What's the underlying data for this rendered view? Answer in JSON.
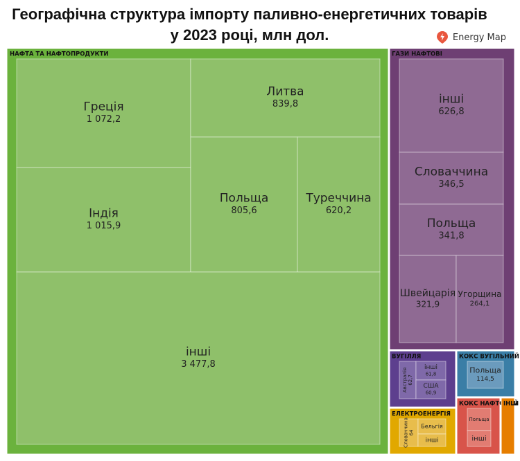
{
  "chart_data": {
    "type": "treemap",
    "title": "Географічна структура імпорту паливно-енергетичних товарів у 2023 році, млн дол.",
    "source": "Energy Map",
    "groups": [
      {
        "name": "НАФТА ТА НАФТОПРОДУКТИ",
        "color": "#6bb23d",
        "child_color": "#8fc06a",
        "children": [
          {
            "name": "Греція",
            "value": 1072.2,
            "value_label": "1 072,2"
          },
          {
            "name": "Індія",
            "value": 1015.9,
            "value_label": "1 015,9"
          },
          {
            "name": "Литва",
            "value": 839.8,
            "value_label": "839,8"
          },
          {
            "name": "Польща",
            "value": 805.6,
            "value_label": "805,6"
          },
          {
            "name": "Туреччина",
            "value": 620.2,
            "value_label": "620,2"
          },
          {
            "name": "інші",
            "value": 3477.8,
            "value_label": "3 477,8"
          }
        ]
      },
      {
        "name": "ГАЗИ НАФТОВІ",
        "color": "#6e3f73",
        "child_color": "#8f6a93",
        "children": [
          {
            "name": "інші",
            "value": 626.8,
            "value_label": "626,8"
          },
          {
            "name": "Словаччина",
            "value": 346.5,
            "value_label": "346,5"
          },
          {
            "name": "Польща",
            "value": 341.8,
            "value_label": "341,8"
          },
          {
            "name": "Швейцарія",
            "value": 321.9,
            "value_label": "321,9"
          },
          {
            "name": "Угорщина",
            "value": 264.1,
            "value_label": "264,1"
          }
        ]
      },
      {
        "name": "ВУГІЛЛЯ",
        "color": "#5d3f8e",
        "child_color": "#7f69a9",
        "children": [
          {
            "name": "Австралія",
            "value": 62.7,
            "value_label": "62,7"
          },
          {
            "name": "інші",
            "value": 61.8,
            "value_label": "61,8"
          },
          {
            "name": "США",
            "value": 60.9,
            "value_label": "60,9"
          }
        ]
      },
      {
        "name": "КОКС ВУГІЛЬНИЙ",
        "color": "#3a7ea6",
        "child_color": "#6b9bbd",
        "children": [
          {
            "name": "Польща",
            "value": 114.5,
            "value_label": "114,5"
          }
        ]
      },
      {
        "name": "ЕЛЕКТРОЕНЕРГІЯ",
        "color": "#e1a800",
        "child_color": "#e8bd4c",
        "children": [
          {
            "name": "Словаччина",
            "value": 64,
            "value_label": "64"
          },
          {
            "name": "Бельгія",
            "value": 40,
            "value_label": null
          },
          {
            "name": "інші",
            "value": 25,
            "value_label": null
          }
        ]
      },
      {
        "name": "КОКС НАФТОВИЙ",
        "color": "#d8544a",
        "child_color": "#e27c72",
        "children": [
          {
            "name": "Польща",
            "value": 50,
            "value_label": null
          },
          {
            "name": "інші",
            "value": 30,
            "value_label": null
          }
        ]
      },
      {
        "name": "ІНШ",
        "color": "#e67e00",
        "value": 40,
        "children": []
      }
    ]
  }
}
